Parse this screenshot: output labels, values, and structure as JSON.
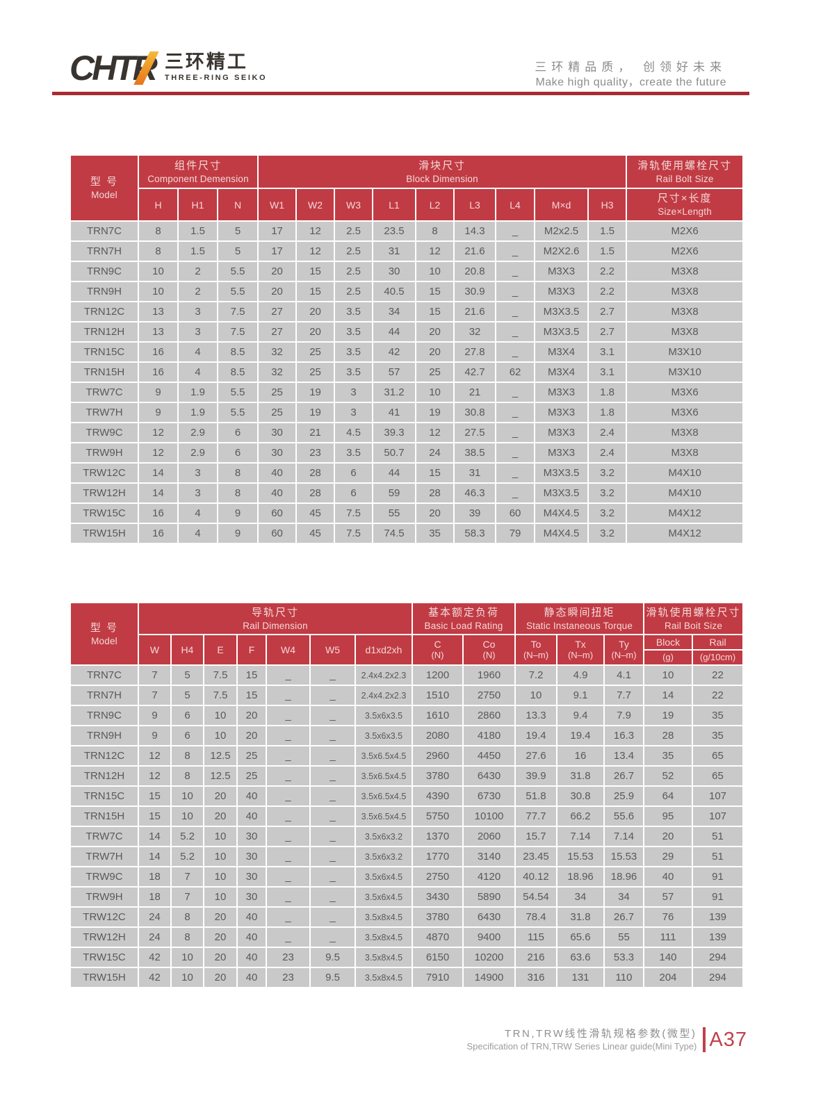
{
  "header": {
    "logo_text": "CHTR",
    "logo_cn": "三环精工",
    "logo_en": "THREE-RING SEIKO",
    "slogan_cn": "三环精品质， 创领好未来",
    "slogan_en": "Make high quality，create the future"
  },
  "table1": {
    "model_cn": "型 号",
    "model_en": "Model",
    "group_component_cn": "组件尺寸",
    "group_component_en": "Component Demension",
    "group_block_cn": "滑块尺寸",
    "group_block_en": "Block Dimension",
    "group_bolt_cn": "滑轨使用螺栓尺寸",
    "group_bolt_en": "Rail Bolt Size",
    "sub_columns": [
      "H",
      "H1",
      "N",
      "W1",
      "W2",
      "W3",
      "L1",
      "L2",
      "L3",
      "L4",
      "M×d",
      "H3"
    ],
    "bolt_sub_cn": "尺寸×长度",
    "bolt_sub_en": "Size×Length",
    "rows": [
      [
        "TRN7C",
        "8",
        "1.5",
        "5",
        "17",
        "12",
        "2.5",
        "23.5",
        "8",
        "14.3",
        "_",
        "M2x2.5",
        "1.5",
        "M2X6"
      ],
      [
        "TRN7H",
        "8",
        "1.5",
        "5",
        "17",
        "12",
        "2.5",
        "31",
        "12",
        "21.6",
        "_",
        "M2X2.6",
        "1.5",
        "M2X6"
      ],
      [
        "TRN9C",
        "10",
        "2",
        "5.5",
        "20",
        "15",
        "2.5",
        "30",
        "10",
        "20.8",
        "_",
        "M3X3",
        "2.2",
        "M3X8"
      ],
      [
        "TRN9H",
        "10",
        "2",
        "5.5",
        "20",
        "15",
        "2.5",
        "40.5",
        "15",
        "30.9",
        "_",
        "M3X3",
        "2.2",
        "M3X8"
      ],
      [
        "TRN12C",
        "13",
        "3",
        "7.5",
        "27",
        "20",
        "3.5",
        "34",
        "15",
        "21.6",
        "_",
        "M3X3.5",
        "2.7",
        "M3X8"
      ],
      [
        "TRN12H",
        "13",
        "3",
        "7.5",
        "27",
        "20",
        "3.5",
        "44",
        "20",
        "32",
        "_",
        "M3X3.5",
        "2.7",
        "M3X8"
      ],
      [
        "TRN15C",
        "16",
        "4",
        "8.5",
        "32",
        "25",
        "3.5",
        "42",
        "20",
        "27.8",
        "_",
        "M3X4",
        "3.1",
        "M3X10"
      ],
      [
        "TRN15H",
        "16",
        "4",
        "8.5",
        "32",
        "25",
        "3.5",
        "57",
        "25",
        "42.7",
        "62",
        "M3X4",
        "3.1",
        "M3X10"
      ],
      [
        "TRW7C",
        "9",
        "1.9",
        "5.5",
        "25",
        "19",
        "3",
        "31.2",
        "10",
        "21",
        "_",
        "M3X3",
        "1.8",
        "M3X6"
      ],
      [
        "TRW7H",
        "9",
        "1.9",
        "5.5",
        "25",
        "19",
        "3",
        "41",
        "19",
        "30.8",
        "_",
        "M3X3",
        "1.8",
        "M3X6"
      ],
      [
        "TRW9C",
        "12",
        "2.9",
        "6",
        "30",
        "21",
        "4.5",
        "39.3",
        "12",
        "27.5",
        "_",
        "M3X3",
        "2.4",
        "M3X8"
      ],
      [
        "TRW9H",
        "12",
        "2.9",
        "6",
        "30",
        "23",
        "3.5",
        "50.7",
        "24",
        "38.5",
        "_",
        "M3X3",
        "2.4",
        "M3X8"
      ],
      [
        "TRW12C",
        "14",
        "3",
        "8",
        "40",
        "28",
        "6",
        "44",
        "15",
        "31",
        "_",
        "M3X3.5",
        "3.2",
        "M4X10"
      ],
      [
        "TRW12H",
        "14",
        "3",
        "8",
        "40",
        "28",
        "6",
        "59",
        "28",
        "46.3",
        "_",
        "M3X3.5",
        "3.2",
        "M4X10"
      ],
      [
        "TRW15C",
        "16",
        "4",
        "9",
        "60",
        "45",
        "7.5",
        "55",
        "20",
        "39",
        "60",
        "M4X4.5",
        "3.2",
        "M4X12"
      ],
      [
        "TRW15H",
        "16",
        "4",
        "9",
        "60",
        "45",
        "7.5",
        "74.5",
        "35",
        "58.3",
        "79",
        "M4X4.5",
        "3.2",
        "M4X12"
      ]
    ]
  },
  "table2": {
    "model_cn": "型 号",
    "model_en": "Model",
    "group_rail_cn": "导轨尺寸",
    "group_rail_en": "Rail Dimension",
    "group_load_cn": "基本额定负荷",
    "group_load_en": "Basic Load Rating",
    "group_torque_cn": "静态瞬间扭矩",
    "group_torque_en": "Static Instaneous Torque",
    "group_bolt_cn": "滑轨使用螺栓尺寸",
    "group_bolt_en": "Rail Boit Size",
    "sub_columns": [
      {
        "t": "W"
      },
      {
        "t": "H4"
      },
      {
        "t": "E"
      },
      {
        "t": "F"
      },
      {
        "t": "W4"
      },
      {
        "t": "W5"
      },
      {
        "t": "d1xd2xh"
      },
      {
        "t": "C",
        "u": "(N)"
      },
      {
        "t": "Co",
        "u": "(N)"
      },
      {
        "t": "To",
        "u": "(N–m)"
      },
      {
        "t": "Tx",
        "u": "(N–m)"
      },
      {
        "t": "Ty",
        "u": "(N–m)"
      },
      {
        "t": "Block",
        "u": "(g)",
        "split": true
      },
      {
        "t": "Rail",
        "u": "(g/10cm)",
        "split": true
      }
    ],
    "rows": [
      [
        "TRN7C",
        "7",
        "5",
        "7.5",
        "15",
        "_",
        "_",
        "2.4x4.2x2.3",
        "1200",
        "1960",
        "7.2",
        "4.9",
        "4.1",
        "10",
        "22"
      ],
      [
        "TRN7H",
        "7",
        "5",
        "7.5",
        "15",
        "_",
        "_",
        "2.4x4.2x2.3",
        "1510",
        "2750",
        "10",
        "9.1",
        "7.7",
        "14",
        "22"
      ],
      [
        "TRN9C",
        "9",
        "6",
        "10",
        "20",
        "_",
        "_",
        "3.5x6x3.5",
        "1610",
        "2860",
        "13.3",
        "9.4",
        "7.9",
        "19",
        "35"
      ],
      [
        "TRN9H",
        "9",
        "6",
        "10",
        "20",
        "_",
        "_",
        "3.5x6x3.5",
        "2080",
        "4180",
        "19.4",
        "19.4",
        "16.3",
        "28",
        "35"
      ],
      [
        "TRN12C",
        "12",
        "8",
        "12.5",
        "25",
        "_",
        "_",
        "3.5x6.5x4.5",
        "2960",
        "4450",
        "27.6",
        "16",
        "13.4",
        "35",
        "65"
      ],
      [
        "TRN12H",
        "12",
        "8",
        "12.5",
        "25",
        "_",
        "_",
        "3.5x6.5x4.5",
        "3780",
        "6430",
        "39.9",
        "31.8",
        "26.7",
        "52",
        "65"
      ],
      [
        "TRN15C",
        "15",
        "10",
        "20",
        "40",
        "_",
        "_",
        "3.5x6.5x4.5",
        "4390",
        "6730",
        "51.8",
        "30.8",
        "25.9",
        "64",
        "107"
      ],
      [
        "TRN15H",
        "15",
        "10",
        "20",
        "40",
        "_",
        "_",
        "3.5x6.5x4.5",
        "5750",
        "10100",
        "77.7",
        "66.2",
        "55.6",
        "95",
        "107"
      ],
      [
        "TRW7C",
        "14",
        "5.2",
        "10",
        "30",
        "_",
        "_",
        "3.5x6x3.2",
        "1370",
        "2060",
        "15.7",
        "7.14",
        "7.14",
        "20",
        "51"
      ],
      [
        "TRW7H",
        "14",
        "5.2",
        "10",
        "30",
        "_",
        "_",
        "3.5x6x3.2",
        "1770",
        "3140",
        "23.45",
        "15.53",
        "15.53",
        "29",
        "51"
      ],
      [
        "TRW9C",
        "18",
        "7",
        "10",
        "30",
        "_",
        "_",
        "3.5x6x4.5",
        "2750",
        "4120",
        "40.12",
        "18.96",
        "18.96",
        "40",
        "91"
      ],
      [
        "TRW9H",
        "18",
        "7",
        "10",
        "30",
        "_",
        "_",
        "3.5x6x4.5",
        "3430",
        "5890",
        "54.54",
        "34",
        "34",
        "57",
        "91"
      ],
      [
        "TRW12C",
        "24",
        "8",
        "20",
        "40",
        "_",
        "_",
        "3.5x8x4.5",
        "3780",
        "6430",
        "78.4",
        "31.8",
        "26.7",
        "76",
        "139"
      ],
      [
        "TRW12H",
        "24",
        "8",
        "20",
        "40",
        "_",
        "_",
        "3.5x8x4.5",
        "4870",
        "9400",
        "115",
        "65.6",
        "55",
        "111",
        "139"
      ],
      [
        "TRW15C",
        "42",
        "10",
        "20",
        "40",
        "23",
        "9.5",
        "3.5x8x4.5",
        "6150",
        "10200",
        "216",
        "63.6",
        "53.3",
        "140",
        "294"
      ],
      [
        "TRW15H",
        "42",
        "10",
        "20",
        "40",
        "23",
        "9.5",
        "3.5x8x4.5",
        "7910",
        "14900",
        "316",
        "131",
        "110",
        "204",
        "294"
      ]
    ]
  },
  "footer": {
    "title_cn": "TRN,TRW线性滑轨规格参数(微型)",
    "title_en": "Specification of TRN,TRW Series Linear guide(Mini Type)",
    "page": "A37"
  },
  "colors": {
    "table_header_red": "#c13b44",
    "rule_red": "#a92b33",
    "accent_red": "#c2404a",
    "cell_gray": "#c9c9c9",
    "logo_orange": "#e8751a"
  }
}
